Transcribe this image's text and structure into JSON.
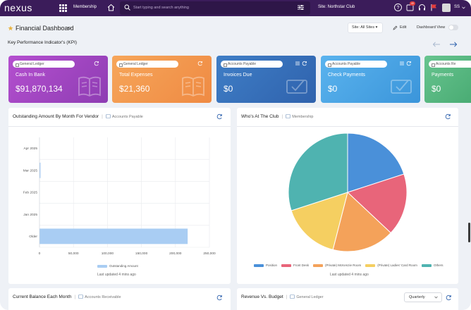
{
  "nav": {
    "logo": "nexus",
    "module": "Membership",
    "search_placeholder": "Start typing and search anything",
    "site": "Site: Northstar Club",
    "notifications_badge": "40",
    "user_initials": "SS"
  },
  "subheader": {
    "title": "Financial Dashboard",
    "site_filter": "Site: All Sites ▾",
    "edit_label": "Edit",
    "dashboard_view_label": "Dashboard View"
  },
  "kpi_heading": "Key Performance Indicator's (KPI)",
  "kpis": [
    {
      "tag": "General Ledger",
      "name": "Cash In Bank",
      "value": "$91,870,134",
      "color_from": "#b44fcf",
      "color_to": "#8e3db3"
    },
    {
      "tag": "General Ledger",
      "name": "Total Expenses",
      "value": "$21,360",
      "color_from": "#f6a65a",
      "color_to": "#ef8a43"
    },
    {
      "tag": "Accounts Payable",
      "name": "Invoices Due",
      "value": "$0",
      "color_from": "#3f7ec6",
      "color_to": "#2f62ad"
    },
    {
      "tag": "Accounts Payable",
      "name": "Check Payments",
      "value": "$0",
      "color_from": "#5ab3ee",
      "color_to": "#3b95da"
    },
    {
      "tag": "Accounts Re",
      "name": "Payments",
      "value": "$0",
      "color_from": "#67c48f",
      "color_to": "#4aac74"
    }
  ],
  "panels": {
    "vendor": {
      "title": "Outstanding Amount By Month For Vendor",
      "module": "Accounts Payable",
      "updated": "Last updated 4 mins ago"
    },
    "club": {
      "title": "Who's At The Club",
      "module": "Membership",
      "updated": "Last updated 4 mins ago"
    },
    "balance": {
      "title": "Current Balance Each Month",
      "module": "Accounts Receivable"
    },
    "revenue": {
      "title": "Revenue Vs. Budget",
      "module": "General Ledger",
      "period": "Quarterly"
    }
  },
  "chart_data": [
    {
      "type": "bar",
      "orientation": "horizontal",
      "categories": [
        "Apr 2025",
        "Mar 2025",
        "Feb 2025",
        "Jan 2025",
        "Older"
      ],
      "series": [
        {
          "name": "Outstanding Amount",
          "values": [
            0,
            1500,
            0,
            0,
            218000
          ],
          "color": "#a9cdf3"
        }
      ],
      "xlim": [
        0,
        250000
      ],
      "xticks": [
        "0",
        "50,000",
        "100,000",
        "150,000",
        "200,000",
        "250,000"
      ],
      "grid": true,
      "legend": "bottom"
    },
    {
      "type": "pie",
      "labels": [
        "Position",
        "Front Desk",
        "(Private) McKenzie Room",
        "(Private) Ladies' Card Room",
        "Others"
      ],
      "values": [
        20,
        17,
        17,
        16,
        30
      ],
      "colors": [
        "#4a90d9",
        "#e8657a",
        "#f4a25a",
        "#f5cf61",
        "#4fb3b0"
      ],
      "legend": "bottom"
    }
  ]
}
